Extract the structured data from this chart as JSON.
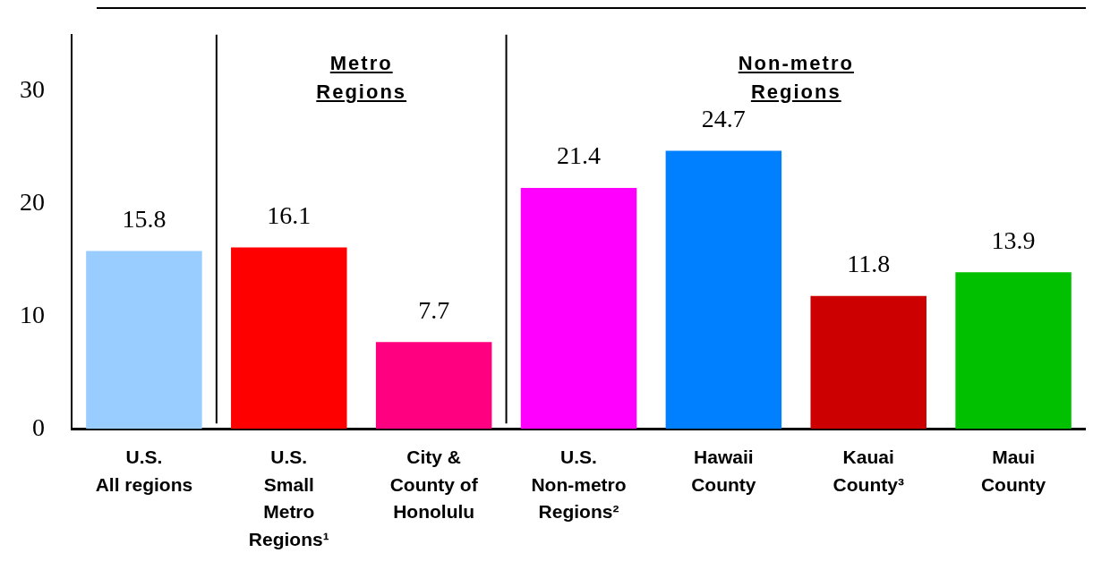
{
  "chart_data": {
    "type": "bar",
    "categories": [
      "U.S.\nAll regions",
      "U.S.\nSmall\nMetro\nRegions¹",
      "City &\nCounty of\nHonolulu",
      "U.S.\nNon-metro\nRegions²",
      "Hawaii\nCounty",
      "Kauai\nCounty³",
      "Maui\nCounty"
    ],
    "values": [
      15.8,
      16.1,
      7.7,
      21.4,
      24.7,
      11.8,
      13.9
    ],
    "colors": [
      "#99ccff",
      "#ff0000",
      "#ff0080",
      "#ff00ff",
      "#0080ff",
      "#cc0000",
      "#00c000"
    ],
    "ylim": [
      0,
      35
    ],
    "yticks": [
      0,
      10,
      20,
      30
    ],
    "annotations": [
      "Metro\nRegions",
      "Non-metro\nRegions"
    ],
    "data_labels": true,
    "grid": false,
    "legend": false
  }
}
